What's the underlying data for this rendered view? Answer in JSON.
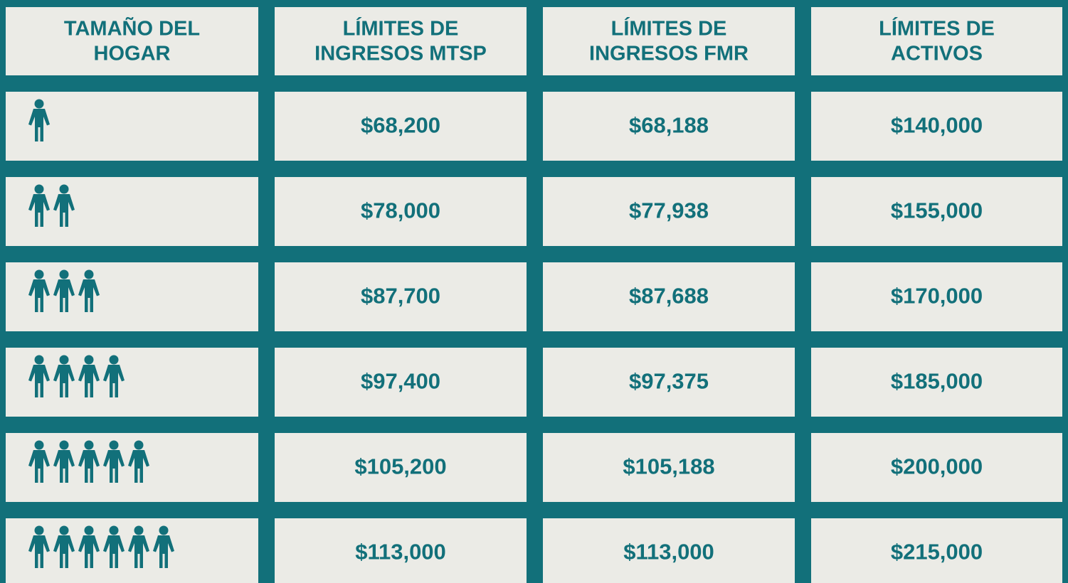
{
  "table": {
    "header": [
      [
        "TAMAÑO DEL",
        "HOGAR"
      ],
      [
        "LÍMITES DE",
        "INGRESOS MTSP"
      ],
      [
        "LÍMITES DE",
        "INGRESOS FMR"
      ],
      [
        "LÍMITES DE",
        "ACTIVOS"
      ]
    ],
    "rows": [
      {
        "household_size": 1,
        "cells": [
          "$68,200",
          "$68,188",
          "$140,000"
        ]
      },
      {
        "household_size": 2,
        "cells": [
          "$78,000",
          "$77,938",
          "$155,000"
        ]
      },
      {
        "household_size": 3,
        "cells": [
          "$87,700",
          "$87,688",
          "$170,000"
        ]
      },
      {
        "household_size": 4,
        "cells": [
          "$97,400",
          "$97,375",
          "$185,000"
        ]
      },
      {
        "household_size": 5,
        "cells": [
          "$105,200",
          "$105,188",
          "$200,000"
        ]
      },
      {
        "household_size": 6,
        "cells": [
          "$113,000",
          "$113,000",
          "$215,000"
        ]
      }
    ]
  }
}
